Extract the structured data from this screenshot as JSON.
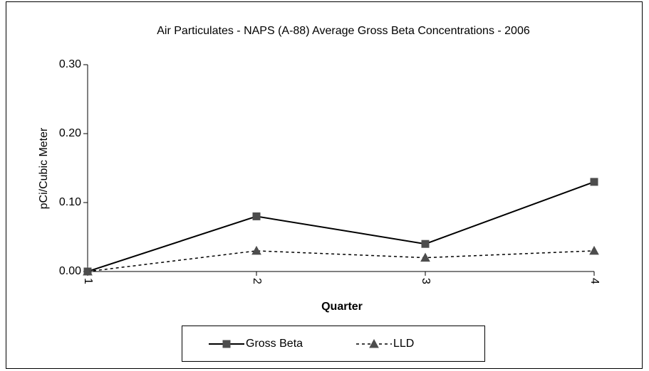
{
  "chart_data": {
    "type": "line",
    "title": "Air Particulates - NAPS (A-88)  Average Gross Beta Concentrations - 2006",
    "x_label": "Quarter",
    "y_label": "pCi/Cubic Meter",
    "categories": [
      "1",
      "2",
      "3",
      "4"
    ],
    "series": [
      {
        "name": "Gross Beta",
        "color": "#000000",
        "marker_color": "#4d4d4d",
        "marker": "square",
        "dashed": false,
        "values": [
          0,
          0.08,
          0.04,
          0.13
        ]
      },
      {
        "name": "LLD",
        "color": "#000000",
        "marker_color": "#4d4d4d",
        "marker": "triangle",
        "dashed": true,
        "values": [
          0,
          0.03,
          0.02,
          0.03
        ]
      }
    ],
    "ylim": [
      0,
      0.3
    ],
    "yticks": [
      {
        "value": 0,
        "label": "0.00"
      },
      {
        "value": 0.1,
        "label": "0.10"
      },
      {
        "value": 0.2,
        "label": "0.20"
      },
      {
        "value": 0.3,
        "label": "0.30"
      }
    ],
    "grid": false,
    "legend": "bottom"
  }
}
